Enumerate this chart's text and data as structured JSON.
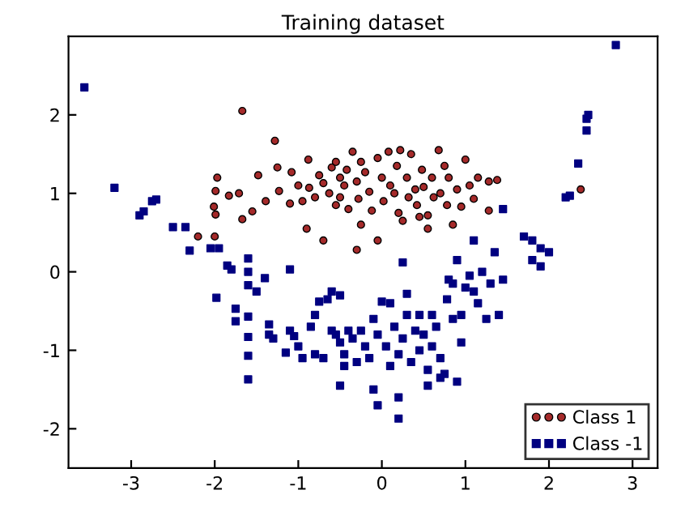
{
  "chart_data": {
    "type": "scatter",
    "title": "Training dataset",
    "xlim": [
      -3.75,
      3.3
    ],
    "ylim": [
      -2.5,
      3.0
    ],
    "xticks": [
      -3,
      -2,
      -1,
      0,
      1,
      2,
      3
    ],
    "yticks": [
      -2,
      -1,
      0,
      1,
      2
    ],
    "grid": false,
    "legend": "bottom right",
    "series": [
      {
        "name": "Class 1",
        "color": "#a52a2a",
        "marker": "circle",
        "x": [
          -1.67,
          -1.28,
          -1.97,
          -1.99,
          -2.01,
          -1.99,
          -1.83,
          -1.71,
          -1.67,
          -1.55,
          -1.48,
          -1.39,
          -1.25,
          -1.23,
          -1.1,
          -1.08,
          -1.0,
          -0.95,
          -0.88,
          -0.87,
          -0.8,
          -0.75,
          -0.7,
          -0.63,
          -0.6,
          -0.55,
          -0.55,
          -0.5,
          -0.5,
          -0.45,
          -0.42,
          -0.4,
          -0.35,
          -0.3,
          -0.28,
          -0.25,
          -0.2,
          -0.15,
          -0.12,
          -0.05,
          0.0,
          0.02,
          0.08,
          0.1,
          0.15,
          0.18,
          0.2,
          0.22,
          0.25,
          0.3,
          0.32,
          0.35,
          0.4,
          0.42,
          0.48,
          0.5,
          0.55,
          0.6,
          0.62,
          0.68,
          0.7,
          0.75,
          0.78,
          0.8,
          0.85,
          0.9,
          0.95,
          1.0,
          1.05,
          1.1,
          1.15,
          1.28,
          1.28,
          1.38,
          -0.7,
          -0.05,
          -0.3,
          0.55,
          -0.9,
          -2.2,
          -2.0,
          2.38,
          -0.25,
          0.45
        ],
        "values": [
          2.05,
          1.67,
          1.2,
          1.03,
          0.83,
          0.73,
          0.97,
          1.0,
          0.67,
          0.77,
          1.23,
          0.9,
          1.33,
          1.03,
          0.87,
          1.27,
          1.1,
          0.9,
          1.43,
          1.07,
          0.95,
          1.23,
          1.13,
          1.0,
          1.33,
          1.4,
          0.85,
          1.2,
          0.95,
          1.1,
          1.3,
          0.8,
          1.53,
          1.15,
          0.93,
          1.4,
          1.27,
          1.02,
          0.78,
          1.45,
          1.2,
          0.9,
          1.53,
          1.1,
          1.0,
          1.35,
          0.75,
          1.55,
          0.65,
          1.2,
          0.95,
          1.5,
          1.05,
          0.85,
          1.3,
          1.08,
          0.72,
          1.2,
          0.95,
          1.55,
          1.0,
          1.35,
          0.85,
          1.2,
          0.6,
          1.05,
          0.83,
          1.43,
          1.1,
          0.93,
          1.2,
          1.15,
          0.78,
          1.17,
          0.4,
          0.4,
          0.28,
          0.55,
          0.55,
          0.45,
          0.45,
          1.05,
          0.6,
          0.7
        ]
      },
      {
        "name": "Class -1",
        "color": "#000080",
        "marker": "square",
        "x": [
          -3.56,
          2.8,
          -3.2,
          -2.9,
          -2.85,
          -2.75,
          -2.7,
          -2.5,
          -2.35,
          -2.3,
          -2.05,
          -1.95,
          -1.85,
          -1.8,
          -1.98,
          -1.75,
          -1.6,
          -1.6,
          -1.6,
          -1.5,
          -1.4,
          -1.1,
          -1.75,
          -1.6,
          -1.6,
          -1.6,
          -1.6,
          -1.35,
          -1.35,
          -1.3,
          -1.1,
          -1.05,
          -1.15,
          -1.0,
          -0.95,
          -0.85,
          -0.8,
          -0.75,
          -0.65,
          -0.6,
          -0.5,
          -0.8,
          -0.7,
          -0.6,
          -0.55,
          -0.5,
          -0.45,
          -0.45,
          -0.4,
          -0.35,
          -0.3,
          -0.25,
          -0.2,
          -0.15,
          -0.1,
          -0.05,
          0.0,
          0.05,
          0.1,
          0.1,
          0.15,
          0.2,
          0.25,
          0.25,
          0.3,
          0.3,
          0.35,
          0.4,
          0.45,
          0.45,
          0.5,
          0.55,
          0.6,
          0.6,
          0.65,
          0.7,
          0.75,
          0.78,
          0.8,
          0.85,
          0.85,
          0.9,
          0.95,
          0.95,
          1.0,
          1.05,
          1.1,
          1.1,
          1.15,
          1.2,
          1.25,
          1.3,
          1.35,
          1.4,
          1.45,
          1.45,
          1.7,
          1.8,
          1.8,
          1.9,
          1.9,
          2.0,
          2.2,
          2.25,
          2.35,
          2.45,
          2.45,
          2.47,
          -0.5,
          -0.1,
          0.2,
          0.2,
          -0.05,
          0.55,
          0.9,
          0.7
        ],
        "values": [
          2.35,
          2.89,
          1.07,
          0.72,
          0.77,
          0.9,
          0.92,
          0.57,
          0.57,
          0.27,
          0.3,
          0.3,
          0.08,
          0.03,
          -0.33,
          -0.47,
          0.0,
          0.17,
          -0.17,
          -0.25,
          -0.08,
          0.03,
          -0.63,
          -0.57,
          -0.83,
          -1.07,
          -1.37,
          -0.67,
          -0.8,
          -0.85,
          -0.75,
          -0.82,
          -1.03,
          -0.95,
          -1.1,
          -0.7,
          -0.55,
          -0.38,
          -0.35,
          -0.25,
          -0.3,
          -1.05,
          -1.1,
          -0.75,
          -0.8,
          -0.9,
          -1.05,
          -1.2,
          -0.75,
          -0.85,
          -1.15,
          -0.75,
          -0.95,
          -1.1,
          -0.6,
          -0.8,
          -0.38,
          -0.95,
          -1.2,
          -0.4,
          -0.7,
          -1.05,
          -0.85,
          0.12,
          -0.28,
          -0.55,
          -1.15,
          -0.75,
          -0.55,
          -1.0,
          -0.8,
          -1.25,
          -0.55,
          -0.95,
          -0.7,
          -1.1,
          -1.3,
          -0.35,
          -0.1,
          -0.6,
          -0.15,
          0.15,
          -0.55,
          -0.9,
          -0.2,
          -0.05,
          -0.25,
          0.4,
          -0.4,
          0.0,
          -0.6,
          -0.15,
          0.25,
          -0.55,
          -0.1,
          0.8,
          0.45,
          0.4,
          0.15,
          0.3,
          0.07,
          0.25,
          0.95,
          0.97,
          1.38,
          1.8,
          1.95,
          2.0,
          -1.45,
          -1.5,
          -1.6,
          -1.87,
          -1.7,
          -1.45,
          -1.4,
          -1.35
        ]
      }
    ]
  }
}
